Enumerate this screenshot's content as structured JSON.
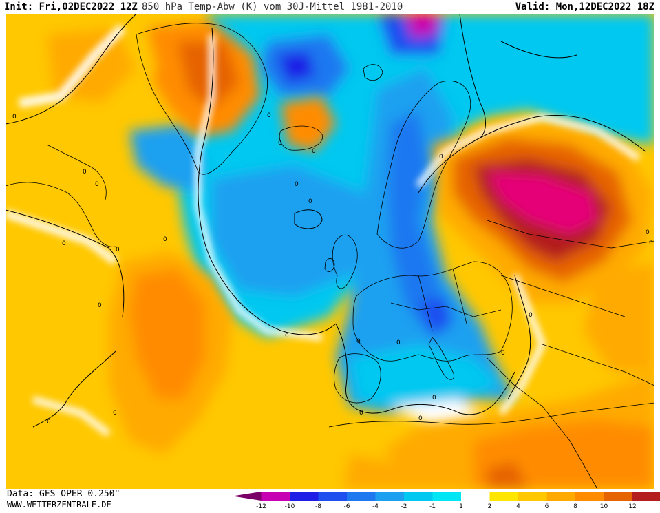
{
  "header": {
    "init_label": "Init: Fri,02DEC2022 12Z",
    "title": "850 hPa Temp-Abw (K) vom 30J-Mittel 1981-2010",
    "valid_label": "Valid: Mon,12DEC2022 18Z"
  },
  "footer": {
    "data_source": "Data: GFS OPER 0.250°",
    "website": "WWW.WETTERZENTRALE.DE"
  },
  "legend": {
    "colors": [
      "#7a0068",
      "#c800b4",
      "#1e1ee6",
      "#1e50f0",
      "#1e78f0",
      "#1ea0f0",
      "#00c8f0",
      "#00e6f5",
      "#ffffff",
      "#ffe600",
      "#ffc800",
      "#ffaa00",
      "#ff8c00",
      "#e66400",
      "#b41e1e",
      "#e60078"
    ],
    "labels": [
      "-12",
      "-10",
      "-8",
      "-6",
      "-4",
      "-2",
      "-1",
      "1",
      "2",
      "4",
      "6",
      "8",
      "10",
      "12"
    ]
  },
  "map": {
    "contour_labels": [
      "0",
      "0",
      "0",
      "0",
      "0",
      "0",
      "0",
      "0",
      "0",
      "0",
      "0",
      "0",
      "0",
      "0",
      "0",
      "0",
      "0",
      "0",
      "0",
      "0",
      "0",
      "0",
      "0",
      "0",
      "0"
    ]
  }
}
